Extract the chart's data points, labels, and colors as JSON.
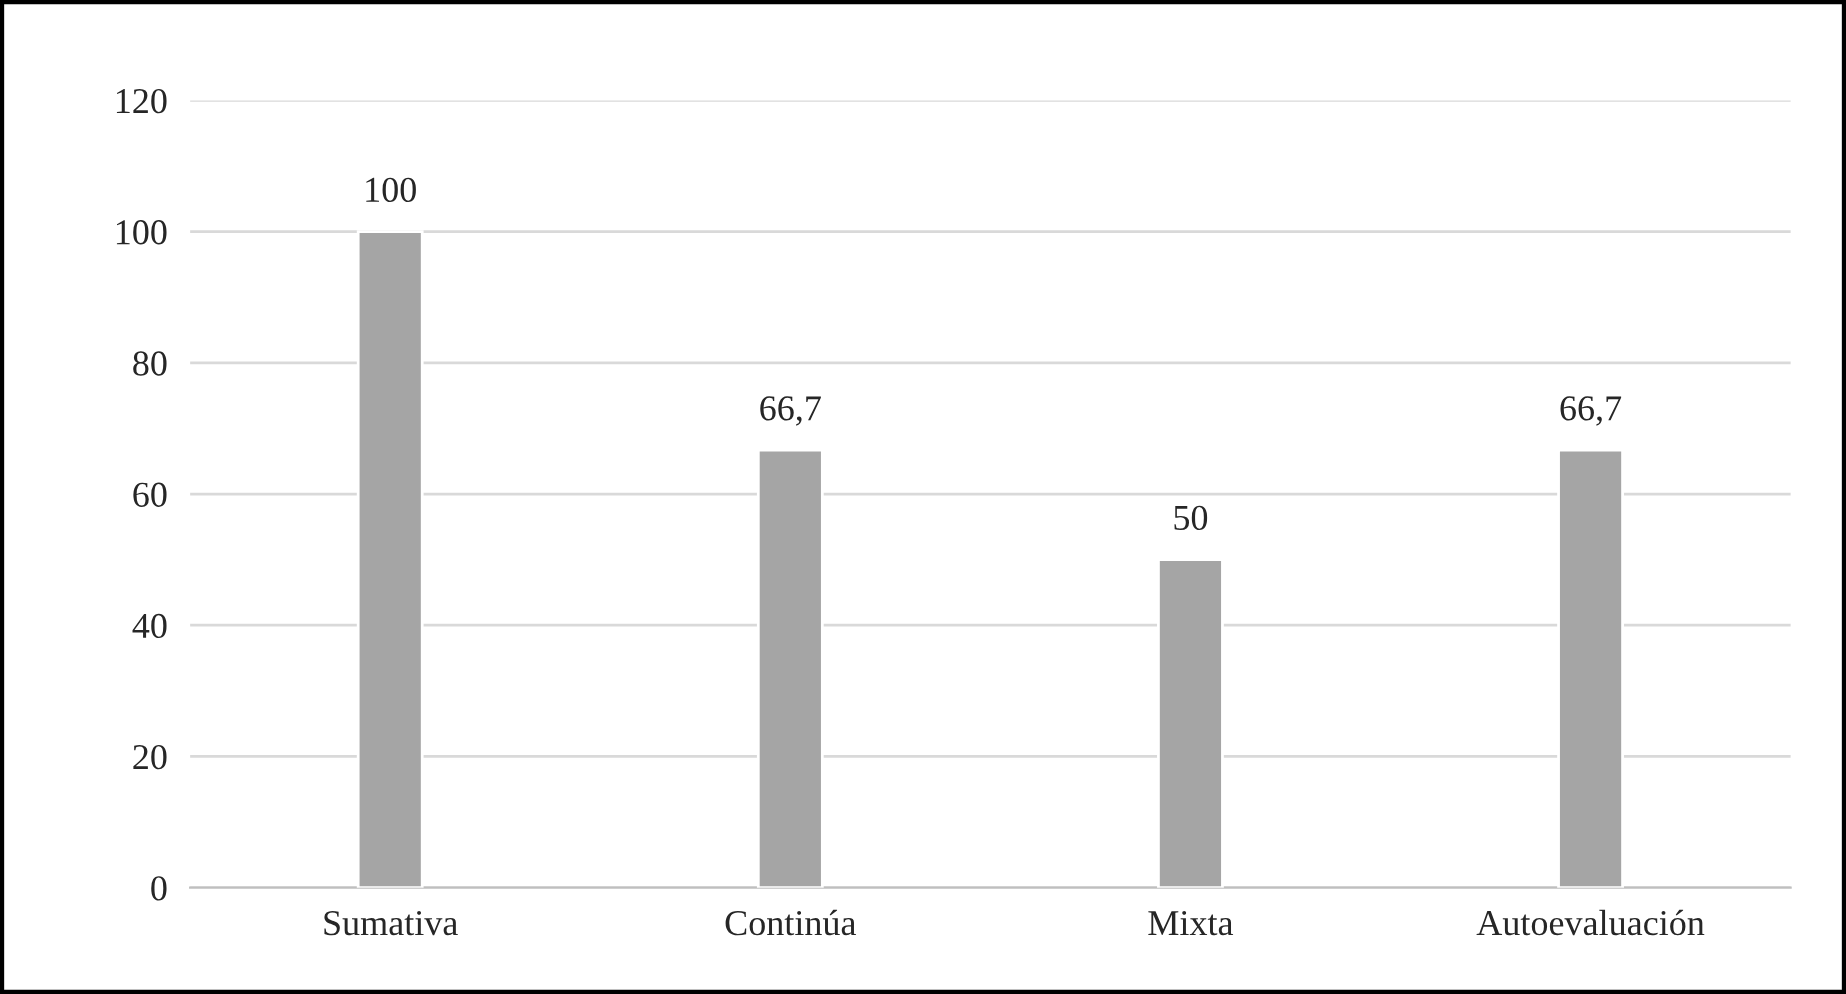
{
  "chart_data": {
    "type": "bar",
    "categories": [
      "Sumativa",
      "Continúa",
      "Mixta",
      "Autoevaluación"
    ],
    "values": [
      100,
      66.7,
      50,
      66.7
    ],
    "value_labels": [
      "100",
      "66,7",
      "50",
      "66,7"
    ],
    "color": "#a5a5a5",
    "ylim": [
      0,
      120
    ],
    "yticks": [
      0,
      20,
      40,
      60,
      80,
      100,
      120
    ],
    "grid": "y",
    "legend": false
  }
}
